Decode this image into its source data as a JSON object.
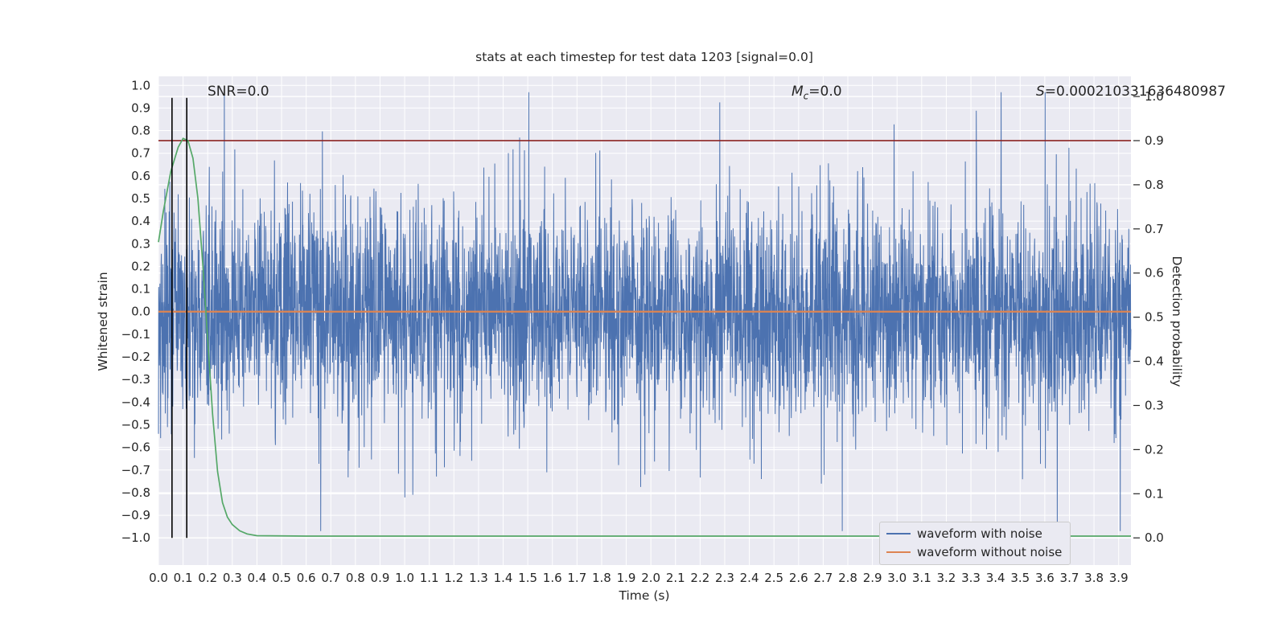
{
  "figure": {
    "background": "#ffffff",
    "plot_background": "#eaeaf2",
    "grid_color": "#ffffff",
    "text_color": "#262626"
  },
  "chart_data": {
    "type": "line",
    "title": "stats at each timestep for test data 1203 [signal=0.0]",
    "xlabel": "Time (s)",
    "ylabel_left": "Whitened strain",
    "ylabel_right": "Detection probability",
    "x_range": [
      0.0,
      3.95
    ],
    "y_left_range": [
      -1.12,
      1.04
    ],
    "right_axis_map": {
      "r0_left": -1.0,
      "r1_left": 0.951
    },
    "x_ticks": [
      0.0,
      0.1,
      0.2,
      0.3,
      0.4,
      0.5,
      0.6,
      0.7,
      0.8,
      0.9,
      1.0,
      1.1,
      1.2,
      1.3,
      1.4,
      1.5,
      1.6,
      1.7,
      1.8,
      1.9,
      2.0,
      2.1,
      2.2,
      2.3,
      2.4,
      2.5,
      2.6,
      2.7,
      2.8,
      2.9,
      3.0,
      3.1,
      3.2,
      3.3,
      3.4,
      3.5,
      3.6,
      3.7,
      3.8,
      3.9
    ],
    "y_left_ticks": [
      1.0,
      0.9,
      0.8,
      0.7,
      0.6,
      0.5,
      0.4,
      0.3,
      0.2,
      0.1,
      0.0,
      -0.1,
      -0.2,
      -0.3,
      -0.4,
      -0.5,
      -0.6,
      -0.7,
      -0.8,
      -0.9,
      -1.0
    ],
    "y_right_ticks": [
      0.0,
      0.1,
      0.2,
      0.3,
      0.4,
      0.5,
      0.6,
      0.7,
      0.8,
      0.9,
      1.0
    ],
    "annotations": {
      "snr": {
        "text": "SNR=0.0"
      },
      "mc": {
        "base": "M",
        "sub": "c",
        "rest": "=0.0"
      },
      "s": {
        "base": "S",
        "rest": "=0.000210331636480987"
      }
    },
    "threshold": {
      "right_value": 0.9,
      "color": "#8b2323"
    },
    "vlines": {
      "x": [
        0.055,
        0.115
      ],
      "color": "#000000",
      "y_left_span": [
        -1.0,
        0.945
      ]
    },
    "series": [
      {
        "name": "waveform with noise",
        "kind": "noise",
        "color": "#4c72b0",
        "n_points": 4000,
        "seed": 1203,
        "std": 0.23,
        "spike_prob": 0.06,
        "spike_scale": 1.9,
        "clip": 0.97
      },
      {
        "name": "waveform without noise",
        "kind": "flat",
        "color": "#dd8452",
        "value": 0.0
      },
      {
        "name": "detection probability",
        "kind": "line_right",
        "color": "#55a868",
        "points": [
          [
            0.0,
            0.67
          ],
          [
            0.02,
            0.74
          ],
          [
            0.05,
            0.83
          ],
          [
            0.08,
            0.885
          ],
          [
            0.1,
            0.905
          ],
          [
            0.12,
            0.9
          ],
          [
            0.14,
            0.86
          ],
          [
            0.16,
            0.77
          ],
          [
            0.18,
            0.62
          ],
          [
            0.2,
            0.45
          ],
          [
            0.22,
            0.28
          ],
          [
            0.24,
            0.15
          ],
          [
            0.26,
            0.08
          ],
          [
            0.28,
            0.047
          ],
          [
            0.3,
            0.03
          ],
          [
            0.33,
            0.016
          ],
          [
            0.36,
            0.009
          ],
          [
            0.4,
            0.005
          ],
          [
            0.6,
            0.004
          ],
          [
            1.0,
            0.004
          ],
          [
            1.5,
            0.004
          ],
          [
            2.0,
            0.004
          ],
          [
            2.5,
            0.004
          ],
          [
            3.0,
            0.004
          ],
          [
            3.5,
            0.004
          ],
          [
            3.95,
            0.004
          ]
        ]
      }
    ],
    "legend": {
      "items": [
        {
          "label": "waveform with noise",
          "color": "#4c72b0"
        },
        {
          "label": "waveform without noise",
          "color": "#dd8452"
        }
      ]
    }
  }
}
